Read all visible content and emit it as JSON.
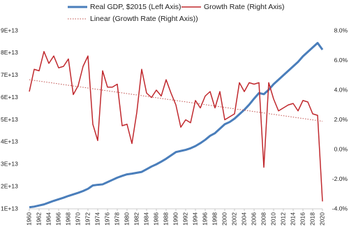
{
  "chart_data": {
    "type": "line",
    "x": [
      1960,
      1961,
      1962,
      1963,
      1964,
      1965,
      1966,
      1967,
      1968,
      1969,
      1970,
      1971,
      1972,
      1973,
      1974,
      1975,
      1976,
      1977,
      1978,
      1979,
      1980,
      1981,
      1982,
      1983,
      1984,
      1985,
      1986,
      1987,
      1988,
      1989,
      1990,
      1991,
      1992,
      1993,
      1994,
      1995,
      1996,
      1997,
      1998,
      1999,
      2000,
      2001,
      2002,
      2003,
      2004,
      2005,
      2006,
      2007,
      2008,
      2009,
      2010,
      2011,
      2012,
      2013,
      2014,
      2015,
      2016,
      2017,
      2018,
      2019,
      2020
    ],
    "xlim": [
      1960,
      2020
    ],
    "xticks": [
      1960,
      1962,
      1964,
      1966,
      1968,
      1970,
      1972,
      1974,
      1976,
      1978,
      1980,
      1982,
      1984,
      1986,
      1988,
      1990,
      1992,
      1994,
      1996,
      1998,
      2000,
      2002,
      2004,
      2006,
      2008,
      2010,
      2012,
      2014,
      2016,
      2018,
      2020
    ],
    "ylim": [
      10000000000000.0,
      90000000000000.0
    ],
    "yticks": [
      {
        "value": 10000000000000.0,
        "label": "1E+13"
      },
      {
        "value": 20000000000000.0,
        "label": "2E+13"
      },
      {
        "value": 30000000000000.0,
        "label": "3E+13"
      },
      {
        "value": 40000000000000.0,
        "label": "4E+13"
      },
      {
        "value": 50000000000000.0,
        "label": "5E+13"
      },
      {
        "value": 60000000000000.0,
        "label": "6E+13"
      },
      {
        "value": 70000000000000.0,
        "label": "7E+13"
      },
      {
        "value": 80000000000000.0,
        "label": "8E+13"
      },
      {
        "value": 90000000000000.0,
        "label": "9E+13"
      }
    ],
    "y2lim": [
      -4,
      8
    ],
    "y2ticks": [
      {
        "value": -4,
        "label": "-4.0%"
      },
      {
        "value": -2,
        "label": "-2.0%"
      },
      {
        "value": 0,
        "label": "0.0%"
      },
      {
        "value": 2,
        "label": "2.0%"
      },
      {
        "value": 4,
        "label": "4.0%"
      },
      {
        "value": 6,
        "label": "6.0%"
      },
      {
        "value": 8,
        "label": "8.0%"
      }
    ],
    "grid": false,
    "series": [
      {
        "name": "Real GDP, $2015 (Left Axis)",
        "color": "#4a7ebb",
        "width": 3,
        "values": [
          10700000000000.0,
          11000000000000.0,
          11500000000000.0,
          12000000000000.0,
          12800000000000.0,
          13600000000000.0,
          14300000000000.0,
          15000000000000.0,
          15800000000000.0,
          16500000000000.0,
          17200000000000.0,
          18000000000000.0,
          19000000000000.0,
          20500000000000.0,
          20800000000000.0,
          21000000000000.0,
          22000000000000.0,
          23000000000000.0,
          24000000000000.0,
          24800000000000.0,
          25500000000000.0,
          25800000000000.0,
          26200000000000.0,
          26600000000000.0,
          27800000000000.0,
          29000000000000.0,
          30000000000000.0,
          31200000000000.0,
          32500000000000.0,
          34000000000000.0,
          35500000000000.0,
          36000000000000.0,
          36500000000000.0,
          37200000000000.0,
          38200000000000.0,
          39500000000000.0,
          41000000000000.0,
          42800000000000.0,
          44000000000000.0,
          46000000000000.0,
          48000000000000.0,
          49000000000000.0,
          50500000000000.0,
          52500000000000.0,
          54500000000000.0,
          56800000000000.0,
          59500000000000.0,
          62000000000000.0,
          61500000000000.0,
          63500000000000.0,
          66000000000000.0,
          68000000000000.0,
          70000000000000.0,
          72000000000000.0,
          74000000000000.0,
          76000000000000.0,
          78500000000000.0,
          80500000000000.0,
          82500000000000.0,
          84500000000000.0,
          81500000000000.0
        ]
      },
      {
        "name": "Growth Rate (Right Axis)",
        "color": "#c0282d",
        "width": 1.5,
        "axis": "y2",
        "values": [
          3.9,
          5.4,
          5.3,
          6.6,
          5.8,
          6.3,
          5.5,
          5.6,
          6.1,
          3.7,
          4.3,
          5.6,
          6.3,
          1.7,
          0.6,
          5.3,
          4.2,
          4.2,
          4.4,
          1.6,
          1.7,
          0.4,
          2.5,
          5.4,
          3.8,
          3.5,
          4.0,
          3.6,
          4.7,
          3.8,
          3.0,
          1.5,
          2.0,
          1.8,
          3.3,
          2.8,
          3.6,
          3.9,
          2.8,
          3.9,
          2.0,
          2.2,
          2.4,
          4.5,
          3.9,
          4.5,
          4.4,
          4.5,
          -1.2,
          4.5,
          3.4,
          2.6,
          2.8,
          3.0,
          3.1,
          2.6,
          3.3,
          3.2,
          2.4,
          2.3,
          -3.5
        ]
      },
      {
        "name": "Linear (Growth Rate (Right Axis))",
        "color": "#c0504d",
        "width": 1,
        "axis": "y2",
        "line_style": "dotted",
        "x": [
          1960,
          2020
        ],
        "values": [
          4.7,
          1.9
        ]
      }
    ]
  }
}
